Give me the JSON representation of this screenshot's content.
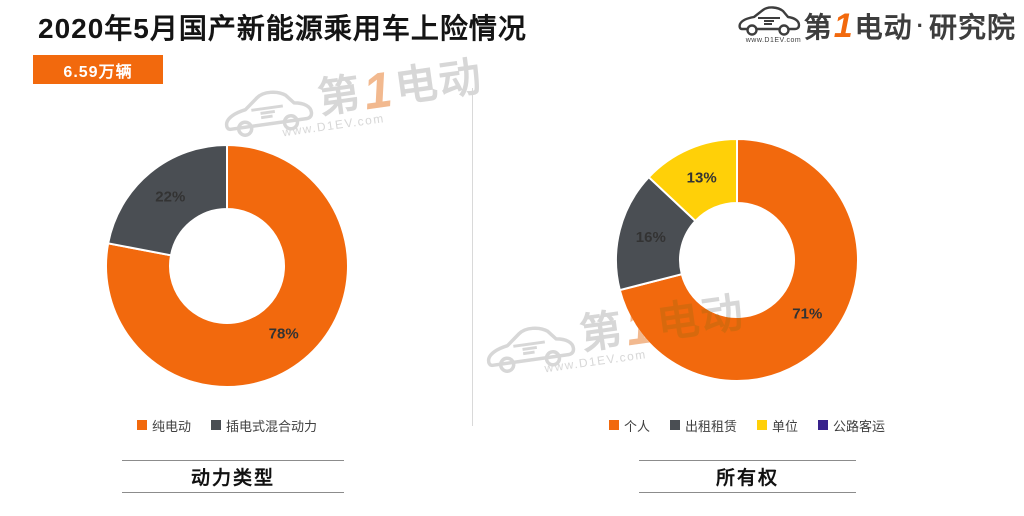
{
  "page": {
    "title": "2020年5月国产新能源乘用车上险情况",
    "total_badge": "6.59万辆"
  },
  "logo": {
    "brand_pre": "第",
    "brand_one": "1",
    "brand_post": "电动",
    "separator": "·",
    "org": "研究院",
    "url": "www.D1EV.com"
  },
  "watermark": {
    "brand_pre": "第",
    "brand_one": "1",
    "brand_post": "电动",
    "url": "www.D1EV.com"
  },
  "colors": {
    "accent_orange": "#F2690D",
    "dark_gray": "#4A4E53",
    "yellow": "#FFD008",
    "indigo": "#38228C",
    "label_text": "#333333",
    "divider": "#d9d9d9"
  },
  "chart_data": {
    "type": "donut",
    "title": "2020年5月国产新能源乘用车上险情况",
    "total": "6.59万辆",
    "legend_position": "bottom",
    "charts": [
      {
        "title": "动力类型",
        "series": [
          {
            "name": "纯电动",
            "value": 78,
            "label": "78%",
            "color": "#F2690D"
          },
          {
            "name": "插电式混合动力",
            "value": 22,
            "label": "22%",
            "color": "#4A4E53"
          }
        ]
      },
      {
        "title": "所有权",
        "series": [
          {
            "name": "个人",
            "value": 71,
            "label": "71%",
            "color": "#F2690D"
          },
          {
            "name": "出租租赁",
            "value": 16,
            "label": "16%",
            "color": "#4A4E53"
          },
          {
            "name": "单位",
            "value": 13,
            "label": "13%",
            "color": "#FFD008"
          },
          {
            "name": "公路客运",
            "value": 0,
            "label": "",
            "color": "#38228C"
          }
        ]
      }
    ]
  }
}
